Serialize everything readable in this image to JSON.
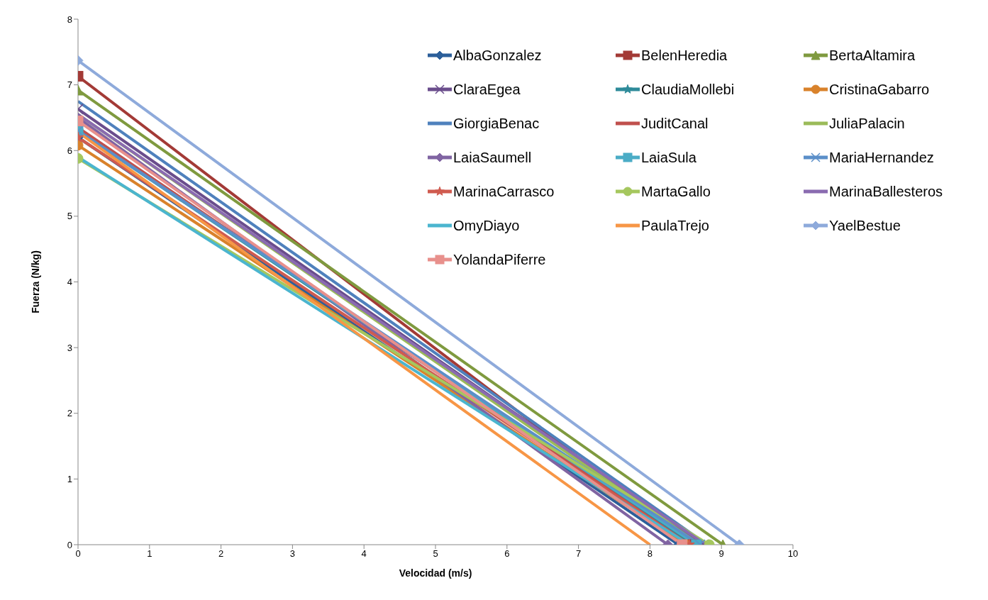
{
  "chart_data": {
    "type": "line",
    "xlabel": "Velocidad (m/s)",
    "ylabel": "Fuerza (N/kg)",
    "xlim": [
      0,
      10
    ],
    "xticks": [
      0,
      1,
      2,
      3,
      4,
      5,
      6,
      7,
      8,
      9,
      10
    ],
    "ylim": [
      0,
      8
    ],
    "yticks": [
      0,
      1,
      2,
      3,
      4,
      5,
      6,
      7,
      8
    ],
    "grid": false,
    "legend": "top right",
    "line_style": "solid",
    "series": [
      {
        "name": "AlbaGonzalez",
        "color": "#2c5f9a",
        "marker": "diamond",
        "x": [
          0,
          8.4
        ],
        "values": [
          6.2,
          0
        ]
      },
      {
        "name": "BelenHeredia",
        "color": "#a33a36",
        "marker": "square",
        "x": [
          0,
          8.6
        ],
        "values": [
          7.13,
          0
        ]
      },
      {
        "name": "BertaAltamira",
        "color": "#7f9a3f",
        "marker": "triangle",
        "x": [
          0,
          9.02
        ],
        "values": [
          6.92,
          0
        ]
      },
      {
        "name": "ClaraEgea",
        "color": "#6a4d8c",
        "marker": "cross",
        "x": [
          0,
          8.75
        ],
        "values": [
          6.63,
          0
        ]
      },
      {
        "name": "ClaudiaMollebi",
        "color": "#2e8b9a",
        "marker": "star",
        "x": [
          0,
          8.6
        ],
        "values": [
          6.3,
          0
        ]
      },
      {
        "name": "CristinaGabarro",
        "color": "#d9822b",
        "marker": "circle",
        "x": [
          0,
          8.5
        ],
        "values": [
          6.08,
          0
        ]
      },
      {
        "name": "GiorgiaBenac",
        "color": "#4f81bd",
        "x": [
          0,
          8.8
        ],
        "values": [
          6.75,
          0
        ]
      },
      {
        "name": "JuditCanal",
        "color": "#c0504d",
        "x": [
          0,
          8.55
        ],
        "values": [
          6.35,
          0
        ]
      },
      {
        "name": "JuliaPalacin",
        "color": "#9bbb59",
        "x": [
          0,
          8.7
        ],
        "values": [
          6.55,
          0
        ]
      },
      {
        "name": "LaiaSaumell",
        "color": "#8064a2",
        "marker": "diamond",
        "x": [
          0,
          8.25
        ],
        "values": [
          6.5,
          0
        ]
      },
      {
        "name": "LaiaSula",
        "color": "#4bacc6",
        "marker": "square",
        "x": [
          0,
          8.65
        ],
        "values": [
          6.3,
          0
        ]
      },
      {
        "name": "MariaHernandez",
        "color": "#5b8fc9",
        "marker": "cross",
        "x": [
          0,
          8.7
        ],
        "values": [
          6.3,
          0
        ]
      },
      {
        "name": "MarinaCarrasco",
        "color": "#d05b4f",
        "marker": "star",
        "x": [
          0,
          8.55
        ],
        "values": [
          6.2,
          0
        ]
      },
      {
        "name": "MartaGallo",
        "color": "#a5c75e",
        "marker": "circle",
        "x": [
          0,
          8.83
        ],
        "values": [
          5.88,
          0
        ]
      },
      {
        "name": "MarinaBallesteros",
        "color": "#8a6bb0",
        "x": [
          0,
          8.78
        ],
        "values": [
          6.55,
          0
        ]
      },
      {
        "name": "OmyDiayo",
        "color": "#4bb5cf",
        "x": [
          0,
          8.55
        ],
        "values": [
          5.9,
          0
        ]
      },
      {
        "name": "PaulaTrejo",
        "color": "#f79646",
        "x": [
          0,
          8.0
        ],
        "values": [
          6.28,
          0
        ]
      },
      {
        "name": "YaelBestue",
        "color": "#8eaadb",
        "marker": "diamond",
        "x": [
          0,
          9.25
        ],
        "values": [
          7.37,
          0
        ]
      },
      {
        "name": "YolandaPiferre",
        "color": "#e8908c",
        "marker": "square",
        "x": [
          0,
          8.45
        ],
        "values": [
          6.45,
          0
        ]
      }
    ]
  }
}
